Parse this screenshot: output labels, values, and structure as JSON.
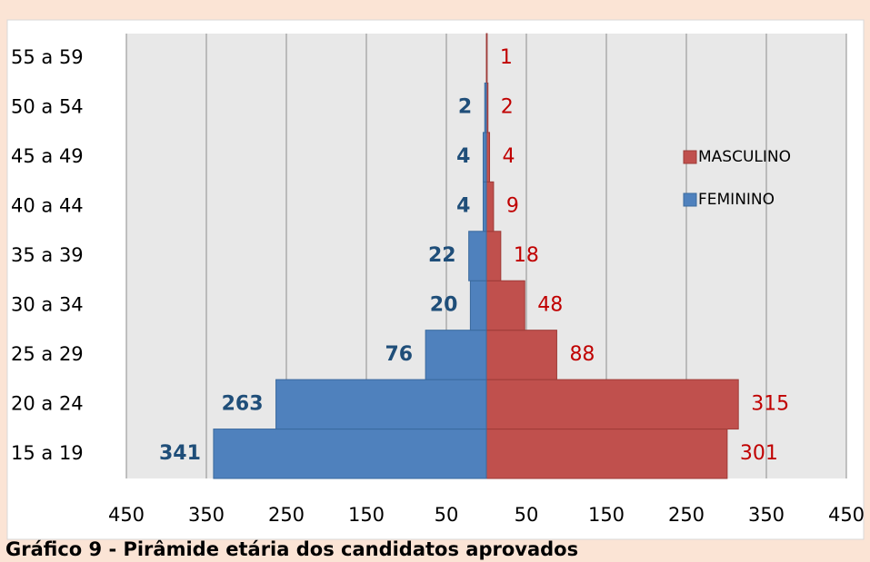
{
  "chart_data": {
    "type": "pyramid",
    "caption": "Gráfico 9 - Pirâmide etária dos candidatos aprovados",
    "categories": [
      "15 a 19",
      "20 a 24",
      "25 a 29",
      "30 a 34",
      "35 a 39",
      "40 a 44",
      "45 a 49",
      "50 a 54",
      "55 a 59"
    ],
    "series": [
      {
        "name": "MASCULINO",
        "color": "#c0504d",
        "label_color": "#c00000",
        "side": "right",
        "values": [
          301,
          315,
          88,
          48,
          18,
          9,
          4,
          2,
          1
        ]
      },
      {
        "name": "FEMININO",
        "color": "#4f81bd",
        "label_color": "#1f4e79",
        "side": "left",
        "values": [
          341,
          263,
          76,
          20,
          22,
          4,
          4,
          2,
          0
        ],
        "value_labels": [
          "341",
          "263",
          "76",
          "20",
          "22",
          "4",
          "4",
          "2",
          null
        ]
      }
    ],
    "xlim": [
      -450,
      450
    ],
    "xticks": [
      {
        "value": -450,
        "label": "450"
      },
      {
        "value": -350,
        "label": "350"
      },
      {
        "value": -250,
        "label": "250"
      },
      {
        "value": -150,
        "label": "150"
      },
      {
        "value": -50,
        "label": "50"
      },
      50,
      150,
      250,
      350,
      450
    ],
    "grid": true
  }
}
